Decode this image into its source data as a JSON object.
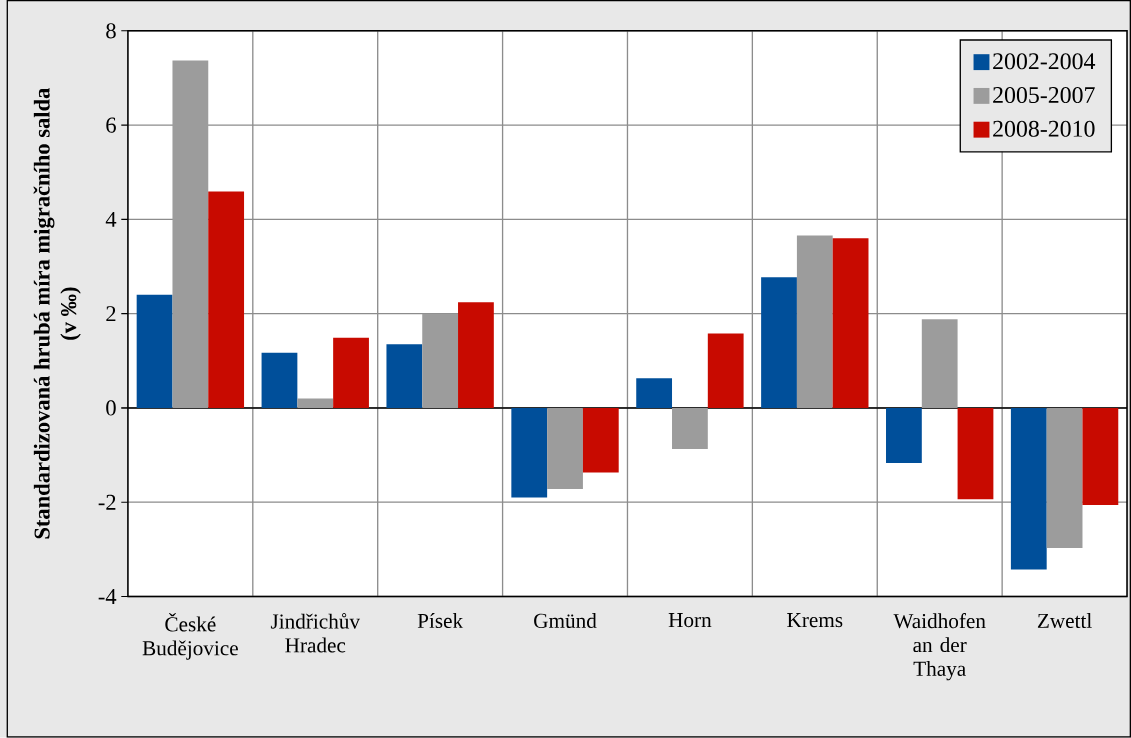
{
  "chart_data": {
    "type": "bar",
    "ylabel": "Standardizovaná hrubá míra migračního salda (v ‰)",
    "categories": [
      "České Budějovice",
      "Jindřichův Hradec",
      "Písek",
      "Gmünd",
      "Horn",
      "Krems",
      "Waidhofen an der Thaya",
      "Zwettl"
    ],
    "series": [
      {
        "name": "2002-2004",
        "color": "#004f9a",
        "values": [
          2.4,
          1.17,
          1.35,
          -1.9,
          0.63,
          2.77,
          -1.17,
          -3.43
        ]
      },
      {
        "name": "2005-2007",
        "color": "#9c9c9c",
        "values": [
          7.37,
          0.2,
          2.0,
          -1.72,
          -0.87,
          3.66,
          1.88,
          -2.97
        ]
      },
      {
        "name": "2008-2010",
        "color": "#c80a00",
        "values": [
          4.59,
          1.49,
          2.24,
          -1.37,
          1.58,
          3.6,
          -1.94,
          -2.06
        ]
      }
    ],
    "ylim": [
      -4,
      8
    ],
    "yticks": [
      -4,
      -2,
      0,
      2,
      4,
      6,
      8
    ],
    "grid": true,
    "legend": "top right"
  }
}
